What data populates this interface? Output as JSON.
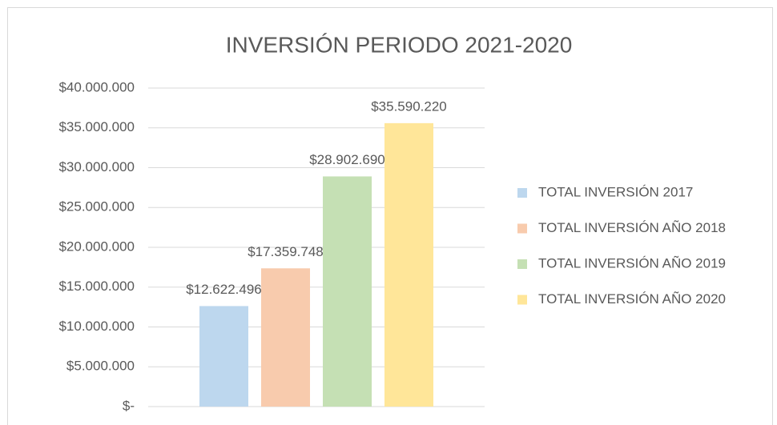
{
  "chart_data": {
    "type": "bar",
    "title": "INVERSIÓN PERIODO 2021-2020",
    "series": [
      {
        "name": "TOTAL INVERSIÓN 2017",
        "color": "#bdd7ee",
        "values": [
          12622496
        ],
        "value_labels": [
          "$12.622.496"
        ]
      },
      {
        "name": "TOTAL INVERSIÓN AÑO 2018",
        "color": "#f8cbad",
        "values": [
          17359748
        ],
        "value_labels": [
          "$17.359.748"
        ]
      },
      {
        "name": "TOTAL INVERSIÓN AÑO 2019",
        "color": "#c5e0b4",
        "values": [
          28902690
        ],
        "value_labels": [
          "$28.902.690"
        ]
      },
      {
        "name": "TOTAL INVERSIÓN AÑO 2020",
        "color": "#ffe699",
        "values": [
          35590220
        ],
        "value_labels": [
          "$35.590.220"
        ]
      }
    ],
    "ylim": [
      0,
      40000000
    ],
    "yticks": [
      {
        "value": 0,
        "label": "$-"
      },
      {
        "value": 5000000,
        "label": "$5.000.000"
      },
      {
        "value": 10000000,
        "label": "$10.000.000"
      },
      {
        "value": 15000000,
        "label": "$15.000.000"
      },
      {
        "value": 20000000,
        "label": "$20.000.000"
      },
      {
        "value": 25000000,
        "label": "$25.000.000"
      },
      {
        "value": 30000000,
        "label": "$30.000.000"
      },
      {
        "value": 35000000,
        "label": "$35.000.000"
      },
      {
        "value": 40000000,
        "label": "$40.000.000"
      }
    ],
    "grid": true,
    "legend": "right"
  }
}
